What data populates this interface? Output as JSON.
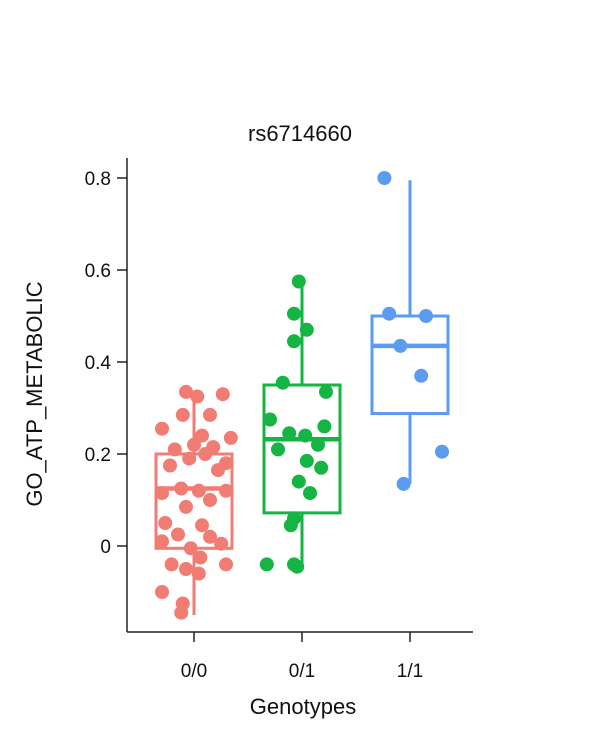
{
  "chart_data": {
    "type": "box",
    "title": "rs6714660",
    "xlabel": "Genotypes",
    "ylabel": "GO_ATP_METABOLIC",
    "categories": [
      "0/0",
      "0/1",
      "1/1"
    ],
    "yticks": [
      0,
      0.2,
      0.4,
      0.6,
      0.8
    ],
    "ytick_labels": [
      "0",
      "0.2",
      "0.4",
      "0.6",
      "0.8"
    ],
    "ylim": [
      -0.19,
      0.84
    ],
    "grid": false,
    "legend": "none",
    "series": [
      {
        "category": "0/0",
        "color": "#f07c73",
        "box": {
          "q1": -0.005,
          "median": 0.125,
          "q3": 0.2,
          "whisker_low": -0.15,
          "whisker_high": 0.33
        },
        "points": [
          [
            -0.05,
            0.335
          ],
          [
            0.02,
            0.325
          ],
          [
            0.18,
            0.33
          ],
          [
            -0.07,
            0.285
          ],
          [
            0.1,
            0.285
          ],
          [
            -0.2,
            0.255
          ],
          [
            0.05,
            0.24
          ],
          [
            0.23,
            0.235
          ],
          [
            0.0,
            0.22
          ],
          [
            0.12,
            0.215
          ],
          [
            -0.12,
            0.21
          ],
          [
            0.07,
            0.2
          ],
          [
            -0.03,
            0.19
          ],
          [
            0.2,
            0.18
          ],
          [
            -0.15,
            0.175
          ],
          [
            0.15,
            0.165
          ],
          [
            -0.08,
            0.125
          ],
          [
            0.03,
            0.12
          ],
          [
            0.2,
            0.12
          ],
          [
            -0.2,
            0.115
          ],
          [
            0.1,
            0.1
          ],
          [
            -0.05,
            0.085
          ],
          [
            -0.18,
            0.05
          ],
          [
            0.05,
            0.045
          ],
          [
            -0.1,
            0.025
          ],
          [
            0.1,
            0.02
          ],
          [
            -0.2,
            0.01
          ],
          [
            0.17,
            0.005
          ],
          [
            -0.02,
            -0.005
          ],
          [
            0.04,
            -0.025
          ],
          [
            -0.14,
            -0.04
          ],
          [
            0.2,
            -0.04
          ],
          [
            -0.05,
            -0.05
          ],
          [
            0.03,
            -0.06
          ],
          [
            -0.2,
            -0.1
          ],
          [
            -0.07,
            -0.125
          ],
          [
            -0.08,
            -0.145
          ]
        ]
      },
      {
        "category": "0/1",
        "color": "#14b542",
        "box": {
          "q1": 0.072,
          "median": 0.232,
          "q3": 0.35,
          "whisker_low": -0.045,
          "whisker_high": 0.575
        },
        "points": [
          [
            -0.02,
            0.575
          ],
          [
            -0.05,
            0.505
          ],
          [
            0.03,
            0.47
          ],
          [
            -0.05,
            0.445
          ],
          [
            -0.12,
            0.355
          ],
          [
            0.15,
            0.335
          ],
          [
            -0.2,
            0.275
          ],
          [
            0.14,
            0.26
          ],
          [
            -0.08,
            0.245
          ],
          [
            0.02,
            0.24
          ],
          [
            0.1,
            0.22
          ],
          [
            -0.15,
            0.21
          ],
          [
            0.03,
            0.185
          ],
          [
            0.12,
            0.17
          ],
          [
            -0.02,
            0.14
          ],
          [
            0.05,
            0.115
          ],
          [
            -0.05,
            0.06
          ],
          [
            -0.07,
            0.045
          ],
          [
            -0.22,
            -0.04
          ],
          [
            -0.05,
            -0.04
          ],
          [
            -0.03,
            -0.045
          ]
        ]
      },
      {
        "category": "1/1",
        "color": "#5b9cf0",
        "box": {
          "q1": 0.288,
          "median": 0.435,
          "q3": 0.5,
          "whisker_low": 0.135,
          "whisker_high": 0.795
        },
        "points": [
          [
            -0.16,
            0.8
          ],
          [
            -0.13,
            0.505
          ],
          [
            0.1,
            0.5
          ],
          [
            -0.06,
            0.435
          ],
          [
            0.07,
            0.37
          ],
          [
            0.2,
            0.205
          ],
          [
            -0.04,
            0.135
          ]
        ]
      }
    ]
  }
}
